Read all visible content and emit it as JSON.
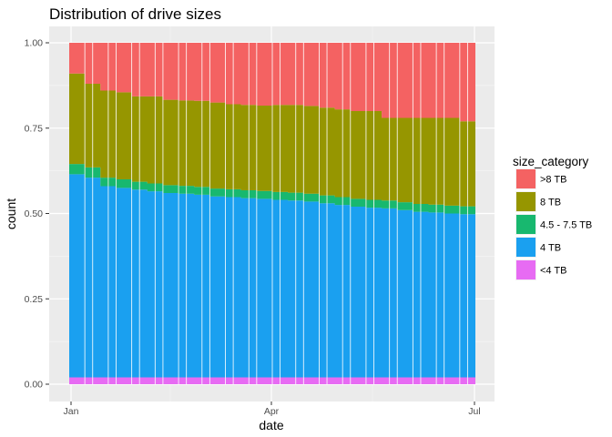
{
  "chart_data": {
    "type": "area",
    "title": "Distribution of drive sizes",
    "xlabel": "date",
    "ylabel": "count",
    "x_ticks": [
      "Jan",
      "Apr",
      "Jul"
    ],
    "y_ticks": [
      "0.00",
      "0.25",
      "0.50",
      "0.75",
      "1.00"
    ],
    "ylim": [
      0,
      1
    ],
    "grid": true,
    "legend": {
      "title": "size_category",
      "position": "right"
    },
    "x": [
      "Jan 1",
      "Jan 8",
      "Jan 15",
      "Jan 22",
      "Jan 29",
      "Feb 5",
      "Feb 12",
      "Feb 19",
      "Feb 26",
      "Mar 5",
      "Mar 12",
      "Mar 19",
      "Mar 26",
      "Apr 2",
      "Apr 9",
      "Apr 16",
      "Apr 23",
      "Apr 30",
      "May 7",
      "May 14",
      "May 21",
      "May 28",
      "Jun 4",
      "Jun 11",
      "Jun 18",
      "Jun 25",
      "Jul 1"
    ],
    "series": [
      {
        "name": "<4 TB",
        "color": "#E76BF3",
        "values": [
          0.02,
          0.02,
          0.02,
          0.02,
          0.02,
          0.02,
          0.02,
          0.02,
          0.02,
          0.02,
          0.02,
          0.02,
          0.02,
          0.02,
          0.02,
          0.02,
          0.02,
          0.02,
          0.02,
          0.02,
          0.02,
          0.02,
          0.02,
          0.02,
          0.02,
          0.02,
          0.02
        ]
      },
      {
        "name": "4 TB",
        "color": "#1AA0F0",
        "values": [
          0.595,
          0.585,
          0.56,
          0.555,
          0.55,
          0.545,
          0.54,
          0.538,
          0.535,
          0.53,
          0.528,
          0.525,
          0.523,
          0.52,
          0.518,
          0.515,
          0.51,
          0.505,
          0.5,
          0.497,
          0.495,
          0.49,
          0.485,
          0.483,
          0.48,
          0.478,
          0.475
        ]
      },
      {
        "name": "4.5 - 7.5 TB",
        "color": "#18B86F",
        "values": [
          0.03,
          0.03,
          0.025,
          0.025,
          0.023,
          0.023,
          0.023,
          0.023,
          0.023,
          0.023,
          0.023,
          0.023,
          0.023,
          0.023,
          0.023,
          0.023,
          0.023,
          0.023,
          0.023,
          0.023,
          0.023,
          0.023,
          0.023,
          0.023,
          0.023,
          0.023,
          0.023
        ]
      },
      {
        "name": "8 TB",
        "color": "#969600",
        "values": [
          0.265,
          0.245,
          0.255,
          0.255,
          0.25,
          0.255,
          0.25,
          0.25,
          0.252,
          0.252,
          0.249,
          0.25,
          0.25,
          0.255,
          0.257,
          0.257,
          0.257,
          0.257,
          0.257,
          0.26,
          0.242,
          0.247,
          0.252,
          0.254,
          0.257,
          0.249,
          0.252
        ]
      },
      {
        "name": ">8 TB",
        "color": "#F46262",
        "values": [
          0.09,
          0.12,
          0.14,
          0.145,
          0.157,
          0.157,
          0.167,
          0.169,
          0.17,
          0.175,
          0.18,
          0.182,
          0.184,
          0.182,
          0.182,
          0.185,
          0.19,
          0.195,
          0.2,
          0.2,
          0.22,
          0.22,
          0.22,
          0.22,
          0.22,
          0.23,
          0.23
        ]
      }
    ]
  }
}
